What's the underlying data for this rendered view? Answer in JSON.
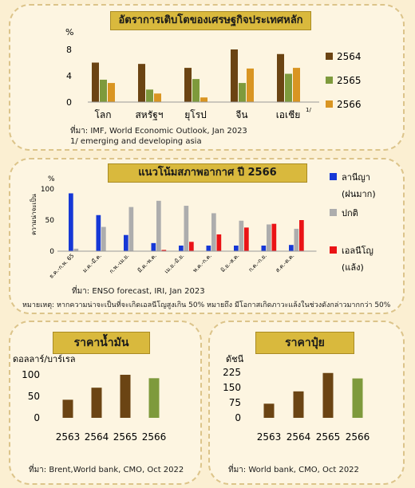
{
  "colors": {
    "c1": "#6b4413",
    "c2": "#7e9a3c",
    "c3": "#d99522",
    "blue": "#1638d6",
    "gray": "#adadad",
    "red": "#ea1316"
  },
  "chart_data": [
    {
      "type": "bar",
      "title": "อัตราการเติบโตของเศรษฐกิจประเทศหลัก",
      "ylabel": "%",
      "ylim": [
        0,
        8
      ],
      "yticks": [
        "0",
        "4",
        "8"
      ],
      "categories": [
        "โลก",
        "สหรัฐฯ",
        "ยุโรป",
        "จีน",
        "เอเชีย"
      ],
      "category_superscript": {
        "4": "1/"
      },
      "series": [
        {
          "name": "2564",
          "values": [
            6.0,
            5.8,
            5.2,
            8.0,
            7.3
          ]
        },
        {
          "name": "2565",
          "values": [
            3.4,
            1.9,
            3.5,
            2.9,
            4.3
          ]
        },
        {
          "name": "2566",
          "values": [
            2.9,
            1.3,
            0.7,
            5.1,
            5.2
          ]
        }
      ],
      "legend": "right",
      "source": "ที่มา: IMF, World Economic Outlook, Jan 2023",
      "footnote": "1/ emerging and developing asia"
    },
    {
      "type": "bar",
      "title": "แนวโน้มสภาพอากาศ ปี 2566",
      "ylabel_top": "%",
      "ylabel": "ความน่าจะเป็น",
      "ylim": [
        0,
        100
      ],
      "yticks": [
        "0",
        "50",
        "100"
      ],
      "categories": [
        "ธ.ค.-ก.พ. 65",
        "ม.ค.-มี.ค.",
        "ก.พ.-เม.ย.",
        "มี.ค.-พ.ค.",
        "เม.ย.-มิ.ย.",
        "พ.ค.-ก.ค.",
        "มิ.ย.-ส.ค.",
        "ก.ค.-ก.ย.",
        "ส.ค.-ต.ค."
      ],
      "series": [
        {
          "name": "ลานีญา (ฝนมาก)",
          "values": [
            93,
            58,
            26,
            13,
            9,
            9,
            9,
            9,
            10
          ]
        },
        {
          "name": "ปกติ",
          "values": [
            4,
            39,
            71,
            81,
            73,
            61,
            49,
            43,
            36
          ]
        },
        {
          "name": "เอลนีโญ (แล้ง)",
          "values": [
            0,
            0,
            0,
            2,
            15,
            27,
            38,
            44,
            50
          ]
        }
      ],
      "legend": [
        "ลานีญา",
        "(ฝนมาก)",
        "ปกติ",
        "เอลนีโญ",
        "(แล้ง)"
      ],
      "source": "ที่มา: ENSO forecast, IRI, Jan 2023",
      "remark": "หมายเหตุ: หากความน่าจะเป็นที่จะเกิดเอลนีโญสูงเกิน 50% หมายถึง มีโอกาสเกิดภาวะแล้งในช่วงดังกล่าวมากกว่า 50%"
    },
    {
      "type": "bar",
      "title": "ราคาน้ำมัน",
      "ylabel": "ดอลลาร์/บาร์เรล",
      "ylim": [
        0,
        100
      ],
      "yticks": [
        "0",
        "50",
        "100"
      ],
      "categories": [
        "2563",
        "2564",
        "2565",
        "2566"
      ],
      "values": [
        42,
        70,
        100,
        92
      ],
      "source": "ที่มา: Brent,World bank, CMO, Oct 2022"
    },
    {
      "type": "bar",
      "title": "ราคาปุ๋ย",
      "ylabel": "ดัชนี",
      "ylim": [
        0,
        225
      ],
      "yticks": [
        "0",
        "75",
        "150",
        "225"
      ],
      "categories": [
        "2563",
        "2564",
        "2565",
        "2566"
      ],
      "values": [
        70,
        131,
        222,
        195
      ],
      "source": "ที่มา: World bank, CMO, Oct 2022"
    }
  ]
}
